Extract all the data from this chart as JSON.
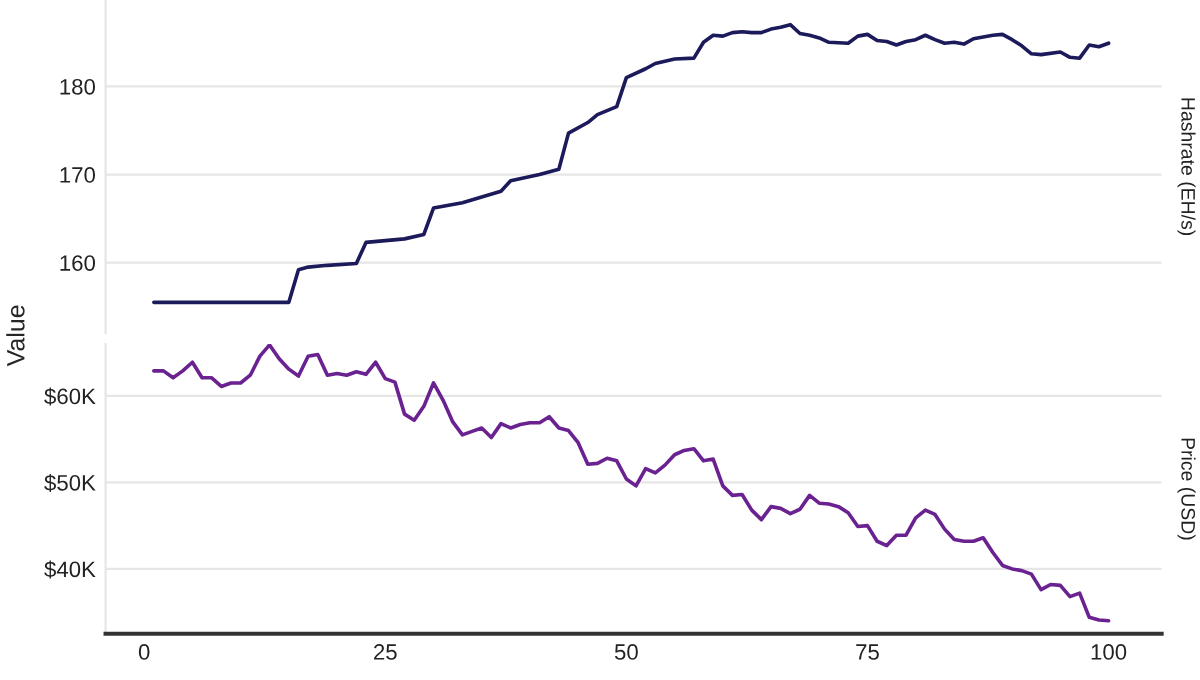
{
  "chart_data": [
    {
      "type": "line",
      "y2label": "Hashrate (EH/s)",
      "xlim": [
        -4,
        105.5
      ],
      "ylim": [
        152,
        189.8
      ],
      "yticks": [
        160,
        170,
        180
      ],
      "grid": "y",
      "tick_labels": "y",
      "legend": false,
      "series": [
        {
          "color": "#1c1a5a",
          "x": [
            1,
            15,
            16,
            17,
            19,
            22,
            23,
            25,
            27,
            29,
            30,
            33,
            37,
            38,
            41,
            43,
            44,
            46,
            47,
            49,
            50,
            52,
            53,
            55,
            57,
            58,
            59,
            60,
            61,
            62,
            63,
            64,
            65,
            66,
            67,
            68,
            69,
            70,
            71,
            73,
            74,
            75,
            76,
            77,
            78,
            79,
            80,
            81,
            82,
            83,
            84,
            85,
            86,
            88,
            89,
            90,
            91,
            92,
            93,
            95,
            96,
            97,
            98,
            99,
            100
          ],
          "values": [
            155.5,
            155.5,
            159.2,
            159.5,
            159.7,
            159.9,
            162.3,
            162.5,
            162.7,
            163.2,
            166.2,
            166.8,
            168.1,
            169.3,
            170.0,
            170.6,
            174.7,
            175.9,
            176.8,
            177.7,
            181.0,
            182.0,
            182.6,
            183.1,
            183.2,
            185.0,
            185.8,
            185.7,
            186.1,
            186.2,
            186.1,
            186.1,
            186.5,
            186.7,
            187.0,
            186.0,
            185.8,
            185.5,
            185.0,
            184.9,
            185.7,
            185.9,
            185.2,
            185.1,
            184.7,
            185.1,
            185.3,
            185.8,
            185.3,
            184.9,
            185.0,
            184.8,
            185.4,
            185.8,
            185.9,
            185.3,
            184.6,
            183.7,
            183.6,
            183.9,
            183.3,
            183.2,
            184.7,
            184.5,
            184.9
          ]
        }
      ]
    },
    {
      "type": "line",
      "ylabel": "Value",
      "y2label": "Price (USD)",
      "xlim": [
        -4,
        105.5
      ],
      "xticks": [
        0,
        25,
        50,
        75,
        100
      ],
      "ylim": [
        32500,
        66000
      ],
      "yticks": [
        {
          "value": 40000,
          "label": "$40K"
        },
        {
          "value": 50000,
          "label": "$50K"
        },
        {
          "value": 60000,
          "label": "$60K"
        }
      ],
      "grid": "y",
      "legend": false,
      "series": [
        {
          "color": "#6a2290",
          "x": [
            1,
            2,
            3,
            4,
            5,
            6,
            7,
            8,
            9,
            10,
            11,
            12,
            13,
            14,
            15,
            16,
            17,
            18,
            19,
            20,
            21,
            22,
            23,
            24,
            25,
            26,
            27,
            28,
            29,
            30,
            31,
            32,
            33,
            34,
            35,
            36,
            37,
            38,
            39,
            40,
            41,
            42,
            43,
            44,
            45,
            46,
            47,
            48,
            49,
            50,
            51,
            52,
            53,
            54,
            55,
            56,
            57,
            58,
            59,
            60,
            61,
            62,
            63,
            64,
            65,
            66,
            67,
            68,
            69,
            70,
            71,
            72,
            73,
            74,
            75,
            76,
            77,
            78,
            79,
            80,
            81,
            82,
            83,
            84,
            85,
            86,
            87,
            88,
            89,
            90,
            91,
            92,
            93,
            94,
            95,
            96,
            97,
            98,
            99,
            100
          ],
          "values": [
            62900,
            62900,
            62100,
            62900,
            63900,
            62100,
            62100,
            61100,
            61500,
            61500,
            62400,
            64600,
            65900,
            64300,
            63100,
            62300,
            64600,
            64800,
            62400,
            62600,
            62400,
            62800,
            62500,
            63900,
            62000,
            61600,
            57900,
            57200,
            58800,
            61500,
            59500,
            57000,
            55500,
            55900,
            56300,
            55200,
            56800,
            56300,
            56700,
            56900,
            56900,
            57600,
            56300,
            56000,
            54600,
            52100,
            52200,
            52800,
            52500,
            50400,
            49600,
            51600,
            51100,
            52000,
            53200,
            53700,
            53900,
            52500,
            52700,
            49600,
            48500,
            48600,
            46800,
            45700,
            47200,
            47000,
            46400,
            46900,
            48500,
            47600,
            47500,
            47200,
            46500,
            44900,
            45000,
            43200,
            42700,
            43900,
            43900,
            45900,
            46800,
            46300,
            44600,
            43400,
            43200,
            43200,
            43600,
            41900,
            40400,
            40000,
            39800,
            39400,
            37600,
            38200,
            38100,
            36800,
            37200,
            34400,
            34100,
            34000
          ]
        }
      ]
    }
  ]
}
